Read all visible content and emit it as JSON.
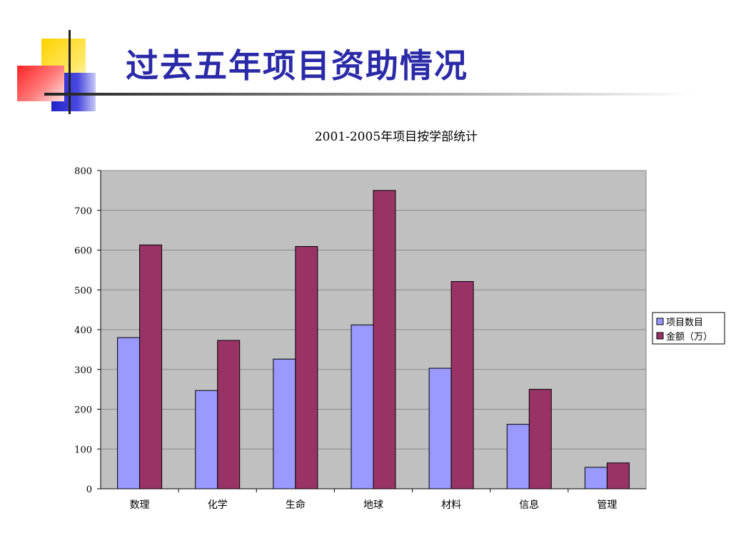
{
  "slide": {
    "title": "过去五年项目资助情况"
  },
  "colors": {
    "title": "#2a2aa8",
    "plot_bg": "#c0c0c0",
    "series1": "#9999ff",
    "series2": "#993366"
  },
  "chart_data": {
    "type": "bar",
    "title": "2001-2005年项目按学部统计",
    "xlabel": "",
    "ylabel": "",
    "categories": [
      "数理",
      "化学",
      "生命",
      "地球",
      "材料",
      "信息",
      "管理"
    ],
    "series": [
      {
        "name": "项目数目",
        "values": [
          380,
          247,
          326,
          412,
          303,
          162,
          54
        ]
      },
      {
        "name": "金额（万）",
        "values": [
          613,
          373,
          609,
          750,
          521,
          250,
          65
        ]
      }
    ],
    "ylim": [
      0,
      800
    ],
    "yticks": [
      0,
      100,
      200,
      300,
      400,
      500,
      600,
      700,
      800
    ],
    "grid": true,
    "legend": "right"
  }
}
